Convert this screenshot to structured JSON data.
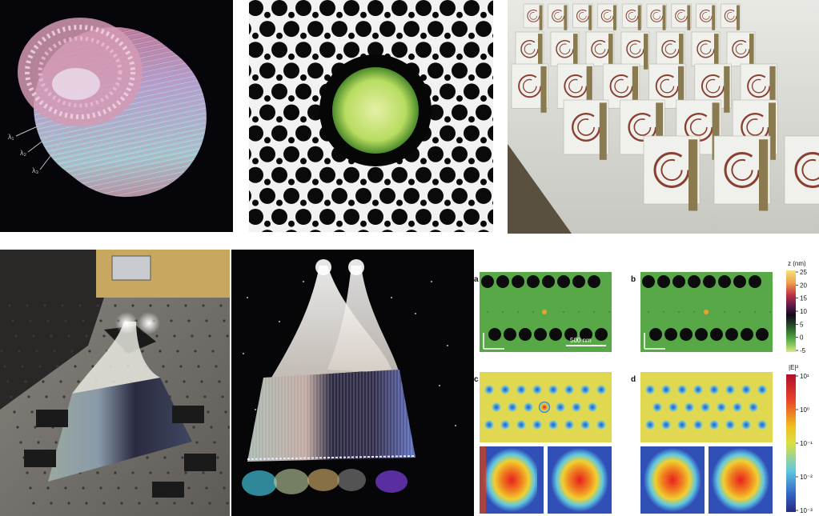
{
  "panels": [
    {
      "name": "fiber-bundle-rendering"
    },
    {
      "name": "photonic-crystal-fiber-crosssection"
    },
    {
      "name": "split-ring-metamaterial-array"
    },
    {
      "name": "fiber-bundle-on-optical-table"
    },
    {
      "name": "illuminated-fiber-bundles"
    },
    {
      "name": "photonic-crystal-cavity-maps"
    }
  ],
  "fiber_bundle_labels": [
    "λ₁",
    "λ₂",
    "λ₃"
  ],
  "cavity_figure": {
    "subpanel_labels": [
      "a",
      "b",
      "c",
      "d"
    ],
    "scale_bar": "500 nm",
    "height_colorbar": {
      "title": "z (nm)",
      "ticks": [
        "25",
        "20",
        "15",
        "10",
        "5",
        "0",
        "-5"
      ],
      "colors": [
        "#f6e27a",
        "#f2a04a",
        "#c0304a",
        "#501848",
        "#100818",
        "#2a5a2a",
        "#58b048",
        "#d8e880"
      ]
    },
    "field_colorbar": {
      "title": "|E|²",
      "ticks": [
        "10¹",
        "10⁰",
        "10⁻¹",
        "10⁻²",
        "10⁻³"
      ],
      "colors": [
        "#b0102a",
        "#e8402a",
        "#f0c020",
        "#d8e040",
        "#60c8e0",
        "#3060c0",
        "#2a2a80"
      ]
    }
  }
}
